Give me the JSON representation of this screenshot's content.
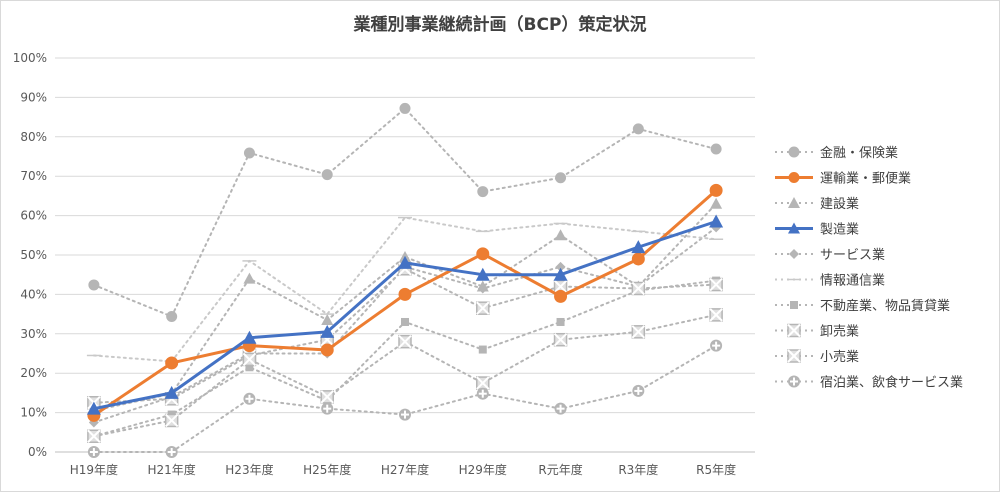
{
  "chart_data": {
    "type": "line",
    "title": "業種別事業継続計画（BCP）策定状況",
    "xlabel": "",
    "ylabel": "",
    "ylim": [
      0,
      100
    ],
    "y_ticks": [
      "0%",
      "10%",
      "20%",
      "30%",
      "40%",
      "50%",
      "60%",
      "70%",
      "80%",
      "90%",
      "100%"
    ],
    "categories": [
      "H19年度",
      "H21年度",
      "H23年度",
      "H25年度",
      "H27年度",
      "H29年度",
      "R元年度",
      "R3年度",
      "R5年度"
    ],
    "legend_position": "right",
    "series": [
      {
        "name": "金融・保険業",
        "values": [
          42.4,
          34.4,
          75.9,
          70.4,
          87.2,
          66.1,
          69.6,
          82.0,
          76.9
        ],
        "color": "#b5b5b5",
        "style": "dotted",
        "marker": "circle",
        "width": 2
      },
      {
        "name": "運輸業・郵便業",
        "values": [
          9.3,
          22.6,
          27.0,
          25.9,
          40.0,
          50.3,
          39.5,
          49.0,
          66.4
        ],
        "color": "#ed7d31",
        "style": "solid",
        "marker": "circle",
        "width": 3
      },
      {
        "name": "建設業",
        "values": [
          10.5,
          14.8,
          44.0,
          33.5,
          49.5,
          42.0,
          55.0,
          42.0,
          63.0
        ],
        "color": "#b5b5b5",
        "style": "dotted",
        "marker": "triangle",
        "width": 2
      },
      {
        "name": "製造業",
        "values": [
          11.0,
          15.0,
          29.0,
          30.5,
          48.0,
          45.0,
          45.0,
          52.0,
          58.5
        ],
        "color": "#4472c4",
        "style": "solid",
        "marker": "triangle",
        "width": 3
      },
      {
        "name": "サービス業",
        "values": [
          7.5,
          14.0,
          25.0,
          25.0,
          47.0,
          41.5,
          47.0,
          42.0,
          57.0
        ],
        "color": "#b5b5b5",
        "style": "dotted",
        "marker": "diamond",
        "width": 2
      },
      {
        "name": "情報通信業",
        "values": [
          24.5,
          23.0,
          48.5,
          35.0,
          59.5,
          56.0,
          58.0,
          56.0,
          54.0
        ],
        "color": "#c9c9c9",
        "style": "dotted",
        "marker": "dash",
        "width": 2
      },
      {
        "name": "不動産業、物品賃貸業",
        "values": [
          4.0,
          9.5,
          21.5,
          13.0,
          33.0,
          26.0,
          33.0,
          41.0,
          43.5
        ],
        "color": "#b5b5b5",
        "style": "dotted",
        "marker": "square",
        "width": 2
      },
      {
        "name": "卸売業",
        "values": [
          12.5,
          13.5,
          24.5,
          28.5,
          46.5,
          36.5,
          42.0,
          41.5,
          42.5
        ],
        "color": "#b5b5b5",
        "style": "dotted",
        "marker": "x-square",
        "width": 2
      },
      {
        "name": "小売業",
        "values": [
          4.0,
          8.0,
          23.5,
          14.0,
          28.0,
          17.5,
          28.5,
          30.5,
          34.8
        ],
        "color": "#b5b5b5",
        "style": "dotted",
        "marker": "x-square",
        "width": 2
      },
      {
        "name": "宿泊業、飲食サービス業",
        "values": [
          0.0,
          0.0,
          13.5,
          11.0,
          9.5,
          14.8,
          11.0,
          15.5,
          27.0
        ],
        "color": "#b5b5b5",
        "style": "dotted",
        "marker": "plus-circle",
        "width": 2
      }
    ]
  }
}
